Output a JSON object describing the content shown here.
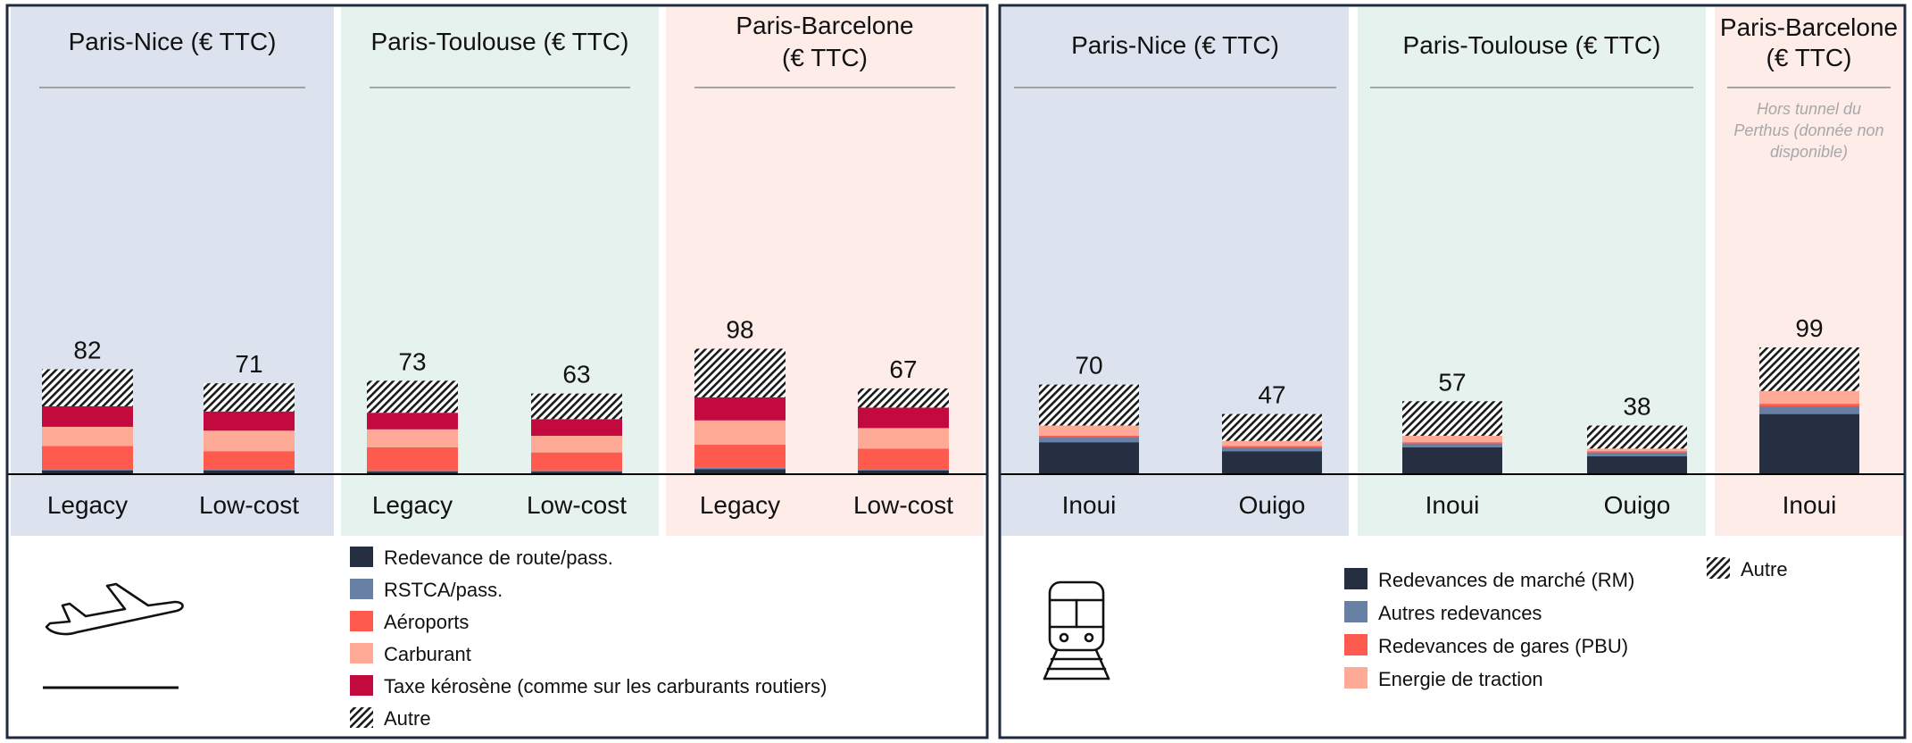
{
  "colors": {
    "bg_nice": "#DCE3EE",
    "bg_toulouse": "#E6F2EE",
    "bg_barcelone": "#FDECE8",
    "frame": "#1F2A3C",
    "title_rule": "#8C8C8C",
    "note": "#A8A8A8",
    "text": "#111111"
  },
  "icons": {
    "plane": "airplane-takeoff-icon",
    "train": "train-icon"
  },
  "chart_data": [
    {
      "type": "bar",
      "stacked": true,
      "mode": "air",
      "unit": "€ TTC",
      "groups": [
        {
          "title_lines": [
            "Paris-Nice (€ TTC)"
          ],
          "bg": "nice"
        },
        {
          "title_lines": [
            "Paris-Toulouse (€ TTC)"
          ],
          "bg": "toulouse"
        },
        {
          "title_lines": [
            "Paris-Barcelone",
            "(€ TTC)"
          ],
          "bg": "barcelone"
        }
      ],
      "categories": [
        "Legacy",
        "Low-cost",
        "Legacy",
        "Low-cost",
        "Legacy",
        "Low-cost"
      ],
      "category_group": [
        0,
        0,
        1,
        1,
        2,
        2
      ],
      "totals": [
        82,
        71,
        73,
        63,
        98,
        67
      ],
      "series": [
        {
          "name": "Redevance de route/pass.",
          "color": "#262F42",
          "values": [
            3,
            3,
            2,
            2,
            4,
            3
          ]
        },
        {
          "name": "RSTCA/pass.",
          "color": "#6780A4",
          "values": [
            1,
            1,
            1,
            1,
            1,
            1
          ]
        },
        {
          "name": "Aéroports",
          "color": "#FF5A4E",
          "values": [
            18,
            14,
            18,
            14,
            18,
            16
          ]
        },
        {
          "name": "Carburant",
          "color": "#FFA997",
          "values": [
            15,
            16,
            14,
            13,
            19,
            16
          ]
        },
        {
          "name": "Taxe kérosène (comme sur les carburants routiers)",
          "color": "#C20A3E",
          "values": [
            16,
            15,
            13,
            13,
            18,
            16
          ]
        },
        {
          "name": "Autre",
          "color": "hatch",
          "values": [
            29,
            22,
            25,
            20,
            38,
            15
          ]
        }
      ]
    },
    {
      "type": "bar",
      "stacked": true,
      "mode": "rail",
      "unit": "€ TTC",
      "groups": [
        {
          "title_lines": [
            "Paris-Nice (€ TTC)"
          ],
          "bg": "nice"
        },
        {
          "title_lines": [
            "Paris-Toulouse (€ TTC)"
          ],
          "bg": "toulouse"
        },
        {
          "title_lines": [
            "Paris-Barcelone",
            "(€ TTC)"
          ],
          "bg": "barcelone",
          "note_lines": [
            "Hors tunnel du",
            "Perthus (donnée non",
            "disponible)"
          ]
        }
      ],
      "categories": [
        "Inoui",
        "Ouigo",
        "Inoui",
        "Ouigo",
        "Inoui"
      ],
      "category_group": [
        0,
        0,
        1,
        1,
        2
      ],
      "totals": [
        70,
        47,
        57,
        38,
        99
      ],
      "series": [
        {
          "name": "Redevances de marché (RM)",
          "color": "#262F42",
          "values": [
            25,
            18,
            21,
            14,
            47
          ]
        },
        {
          "name": "Autres redevances",
          "color": "#6780A4",
          "values": [
            4,
            3,
            3,
            3,
            6
          ]
        },
        {
          "name": "Redevances de gares (PBU)",
          "color": "#FF5A4E",
          "values": [
            1,
            1,
            1,
            1,
            2
          ]
        },
        {
          "name": "Energie de traction",
          "color": "#FFA997",
          "values": [
            8,
            4,
            5,
            2,
            10
          ]
        },
        {
          "name": "Autre",
          "color": "hatch",
          "values": [
            32,
            21,
            27,
            18,
            34
          ]
        }
      ]
    }
  ]
}
